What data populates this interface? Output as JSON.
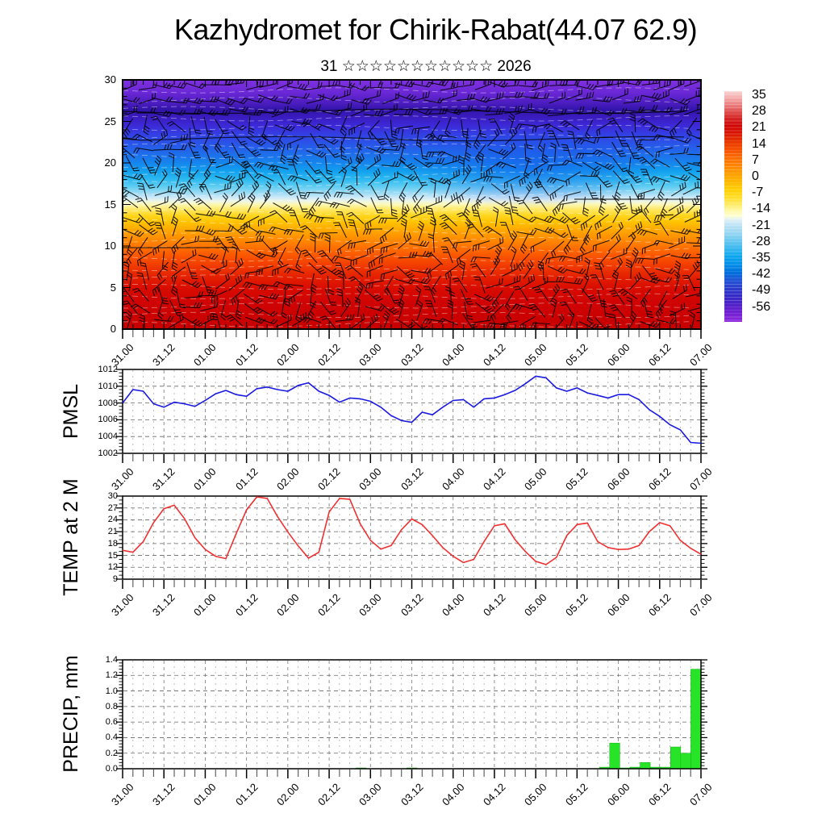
{
  "title": "Kazhydromet for Chirik-Rabat(44.07 62.9)",
  "subtitle": {
    "day": "31",
    "stars": "☆☆☆☆☆☆☆☆☆☆☆",
    "year": "2026"
  },
  "time_axis": {
    "labels": [
      "31.00",
      "31.12",
      "01.00",
      "01.12",
      "02.00",
      "02.12",
      "03.00",
      "03.12",
      "04.00",
      "04.12",
      "05.00",
      "05.12",
      "06.00",
      "06.12",
      "07.00"
    ],
    "start": "31.00",
    "end": "07.00",
    "total_hours": 168,
    "minor_step_hours": 3,
    "major_step_hours": 12
  },
  "colors": {
    "pmsl_line": "#1a1ae0",
    "temp_line": "#f03030",
    "precip_bar": "#28e428",
    "precip_bar_edge": "#14b014",
    "axis": "#000000",
    "grid_major": "#777777",
    "grid_minor": "#aaaaaa",
    "barb": "#000000",
    "contour_white": "#ffffff"
  },
  "cross_section": {
    "y_ticks": [
      0,
      5,
      10,
      15,
      20,
      25,
      30
    ],
    "colorbar_labels": [
      35,
      28,
      21,
      14,
      7,
      0,
      -7,
      -14,
      -21,
      -28,
      -35,
      -42,
      -49,
      -56
    ],
    "colorbar_stops": [
      [
        0.0,
        "#fbd4d4"
      ],
      [
        0.03,
        "#f4aaaa"
      ],
      [
        0.06,
        "#ea7d7d"
      ],
      [
        0.09,
        "#df4f4f"
      ],
      [
        0.12,
        "#d42222"
      ],
      [
        0.15,
        "#cf0505"
      ],
      [
        0.185,
        "#da1500"
      ],
      [
        0.22,
        "#e93800"
      ],
      [
        0.255,
        "#f55200"
      ],
      [
        0.29,
        "#fd6c00"
      ],
      [
        0.325,
        "#ff8600"
      ],
      [
        0.36,
        "#ffa000"
      ],
      [
        0.395,
        "#ffba00"
      ],
      [
        0.43,
        "#ffd000"
      ],
      [
        0.465,
        "#ffdf2e"
      ],
      [
        0.495,
        "#ffee71"
      ],
      [
        0.52,
        "#fff9ad"
      ],
      [
        0.54,
        "#ffffd2"
      ],
      [
        0.555,
        "#e4f2f2"
      ],
      [
        0.575,
        "#c4e6f6"
      ],
      [
        0.61,
        "#9cd8f2"
      ],
      [
        0.645,
        "#6fc9f0"
      ],
      [
        0.68,
        "#3db9ef"
      ],
      [
        0.715,
        "#0ba6ee"
      ],
      [
        0.75,
        "#008ee8"
      ],
      [
        0.785,
        "#0071dd"
      ],
      [
        0.82,
        "#2355d5"
      ],
      [
        0.855,
        "#2c3ccb"
      ],
      [
        0.89,
        "#3529c6"
      ],
      [
        0.925,
        "#5222c8"
      ],
      [
        0.96,
        "#7121d2"
      ],
      [
        1.0,
        "#8c26de"
      ]
    ],
    "field_stops": [
      [
        0.0,
        "#8030e0"
      ],
      [
        0.05,
        "#6b28d6"
      ],
      [
        0.095,
        "#4a1cbe"
      ],
      [
        0.12,
        "#3214aa"
      ],
      [
        0.15,
        "#3a1cc0"
      ],
      [
        0.185,
        "#3c2ad8"
      ],
      [
        0.22,
        "#3340e4"
      ],
      [
        0.255,
        "#2a55e8"
      ],
      [
        0.29,
        "#2069ea"
      ],
      [
        0.33,
        "#1683ec"
      ],
      [
        0.365,
        "#12a0ee"
      ],
      [
        0.4,
        "#2ebaf0"
      ],
      [
        0.43,
        "#64cef2"
      ],
      [
        0.455,
        "#9fdcf4"
      ],
      [
        0.472,
        "#ceeaf8"
      ],
      [
        0.487,
        "#eef6e6"
      ],
      [
        0.5,
        "#fcf7b2"
      ],
      [
        0.52,
        "#ffe866"
      ],
      [
        0.545,
        "#ffd61e"
      ],
      [
        0.57,
        "#ffc300"
      ],
      [
        0.6,
        "#ffaa00"
      ],
      [
        0.635,
        "#ff8f00"
      ],
      [
        0.67,
        "#ff7300"
      ],
      [
        0.7,
        "#fb5a00"
      ],
      [
        0.735,
        "#f44200"
      ],
      [
        0.77,
        "#ea2c00"
      ],
      [
        0.805,
        "#e01900"
      ],
      [
        0.84,
        "#d80b00"
      ],
      [
        0.89,
        "#d00404"
      ],
      [
        0.945,
        "#cb0000"
      ],
      [
        1.0,
        "#c80000"
      ]
    ]
  },
  "panels": {
    "pmsl": {
      "label": "PMSL",
      "y_ticks": [
        1002,
        1004,
        1006,
        1008,
        1010,
        1012
      ],
      "ymin": 1002,
      "ymax": 1012
    },
    "temp": {
      "label": "TEMP at 2 M",
      "y_ticks": [
        9,
        12,
        15,
        18,
        21,
        24,
        27,
        30
      ],
      "ymin": 9,
      "ymax": 30
    },
    "precip": {
      "label": "PRECIP, mm",
      "y_ticks": [
        "0.0",
        "0.2",
        "0.4",
        "0.6",
        "0.8",
        "1.0",
        "1.2",
        "1.4"
      ],
      "ymin": 0,
      "ymax": 1.4
    }
  },
  "chart_data": [
    {
      "id": "cross_section",
      "type": "heatmap",
      "description": "Vertical cross-section of temperature (shaded, °C) with wind barbs, height 0-30 vs time",
      "x_range": [
        "31.00",
        "07.00"
      ],
      "ylim": [
        0,
        30
      ],
      "colorbar_range": [
        35,
        -56
      ],
      "colorbar_step": -7
    },
    {
      "id": "pmsl",
      "type": "line",
      "name": "PMSL",
      "ylim": [
        1002,
        1012
      ],
      "x_start": "31.00",
      "x_end": "07.00",
      "step_hours": 3,
      "values": [
        1008.0,
        1009.6,
        1009.4,
        1007.9,
        1007.5,
        1008.1,
        1007.9,
        1007.6,
        1008.3,
        1009.1,
        1009.5,
        1009.0,
        1008.8,
        1009.7,
        1009.9,
        1009.6,
        1009.4,
        1010.1,
        1010.4,
        1009.4,
        1008.9,
        1008.1,
        1008.6,
        1008.5,
        1008.2,
        1007.5,
        1006.5,
        1005.9,
        1005.7,
        1006.9,
        1006.6,
        1007.5,
        1008.3,
        1008.4,
        1007.5,
        1008.5,
        1008.6,
        1009.0,
        1009.5,
        1010.3,
        1011.2,
        1011.0,
        1009.8,
        1009.4,
        1009.8,
        1009.2,
        1008.9,
        1008.6,
        1009.0,
        1009.0,
        1008.4,
        1007.2,
        1006.4,
        1005.4,
        1004.8,
        1003.3,
        1003.2
      ]
    },
    {
      "id": "temp",
      "type": "line",
      "name": "TEMP at 2 M",
      "ylim": [
        9,
        30
      ],
      "x_start": "31.00",
      "x_end": "07.00",
      "step_hours": 3,
      "values": [
        16.3,
        15.8,
        18.5,
        23.3,
        26.8,
        27.7,
        24.3,
        19.5,
        16.5,
        14.8,
        14.2,
        20.5,
        26.5,
        29.8,
        29.4,
        24.8,
        20.9,
        17.4,
        14.3,
        15.8,
        26.0,
        29.4,
        29.2,
        23.0,
        18.8,
        16.6,
        17.5,
        21.5,
        24.2,
        22.8,
        20.0,
        17.0,
        14.8,
        13.2,
        14.0,
        18.5,
        22.5,
        23.0,
        19.0,
        16.0,
        13.5,
        12.7,
        14.5,
        20.0,
        22.8,
        23.2,
        18.5,
        17.0,
        16.5,
        16.6,
        17.5,
        21.0,
        23.3,
        22.5,
        18.8,
        16.8,
        15.3
      ]
    },
    {
      "id": "precip",
      "type": "bar",
      "name": "PRECIP, mm",
      "ylim": [
        0,
        1.4
      ],
      "x_start": "31.00",
      "x_end": "07.00",
      "slot_hours": 3,
      "values": [
        0,
        0,
        0,
        0,
        0,
        0,
        0,
        0,
        0,
        0,
        0,
        0,
        0,
        0,
        0,
        0,
        0,
        0,
        0,
        0,
        0,
        0,
        0,
        0.01,
        0,
        0,
        0,
        0,
        0.01,
        0,
        0,
        0,
        0,
        0,
        0,
        0,
        0,
        0,
        0,
        0,
        0,
        0,
        0,
        0,
        0,
        0,
        0,
        0.02,
        0.33,
        0.01,
        0.02,
        0.08,
        0.02,
        0.02,
        0.28,
        0.2,
        1.28
      ]
    }
  ]
}
